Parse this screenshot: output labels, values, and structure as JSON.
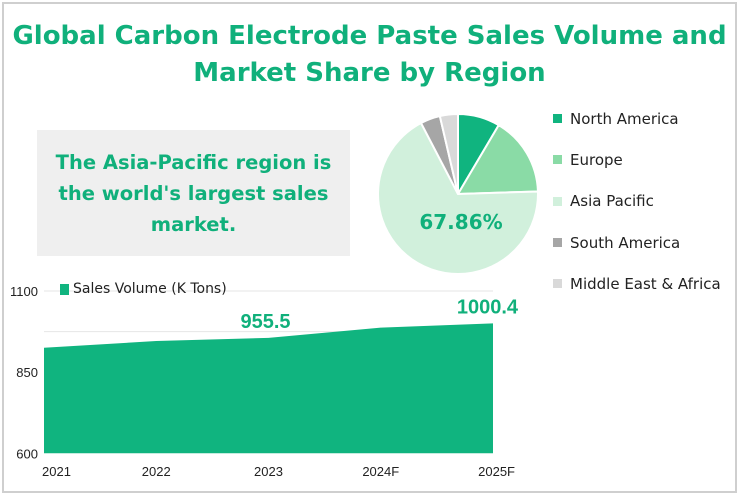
{
  "title": "Global Carbon Electrode Paste Sales Volume and Market Share by Region",
  "title_lines": [
    "Global Carbon Electrode Paste Sales Volume and",
    "Market Share by Region"
  ],
  "callout": "The Asia-Pacific region is the world's largest sales market.",
  "colors": {
    "accent": "#10b07b",
    "area": "#10b47f"
  },
  "chart_data": [
    {
      "type": "pie",
      "title": "Market Share by Region",
      "labels": [
        "North America",
        "Europe",
        "Asia Pacific",
        "South America",
        "Middle East & Africa"
      ],
      "values": [
        8.5,
        16.0,
        67.86,
        4.0,
        3.64
      ],
      "colors": [
        "#10b47f",
        "#8adba6",
        "#d1f0dc",
        "#a6a6a6",
        "#d9d9d9"
      ],
      "data_label": "67.86%",
      "legend": "right"
    },
    {
      "type": "area",
      "series": [
        {
          "name": "Sales Volume (K Tons)",
          "values": [
            925,
            946,
            955.5,
            987,
            1000.4
          ]
        }
      ],
      "categories": [
        "2021",
        "2022",
        "2023",
        "2024F",
        "2025F"
      ],
      "ylim": [
        600,
        1100
      ],
      "yticks": [
        "600",
        "850",
        "1100"
      ],
      "data_labels": [
        {
          "index": 2,
          "text": "955.5"
        },
        {
          "index": 4,
          "text": "1000.4"
        }
      ],
      "legend": "top-left"
    }
  ]
}
